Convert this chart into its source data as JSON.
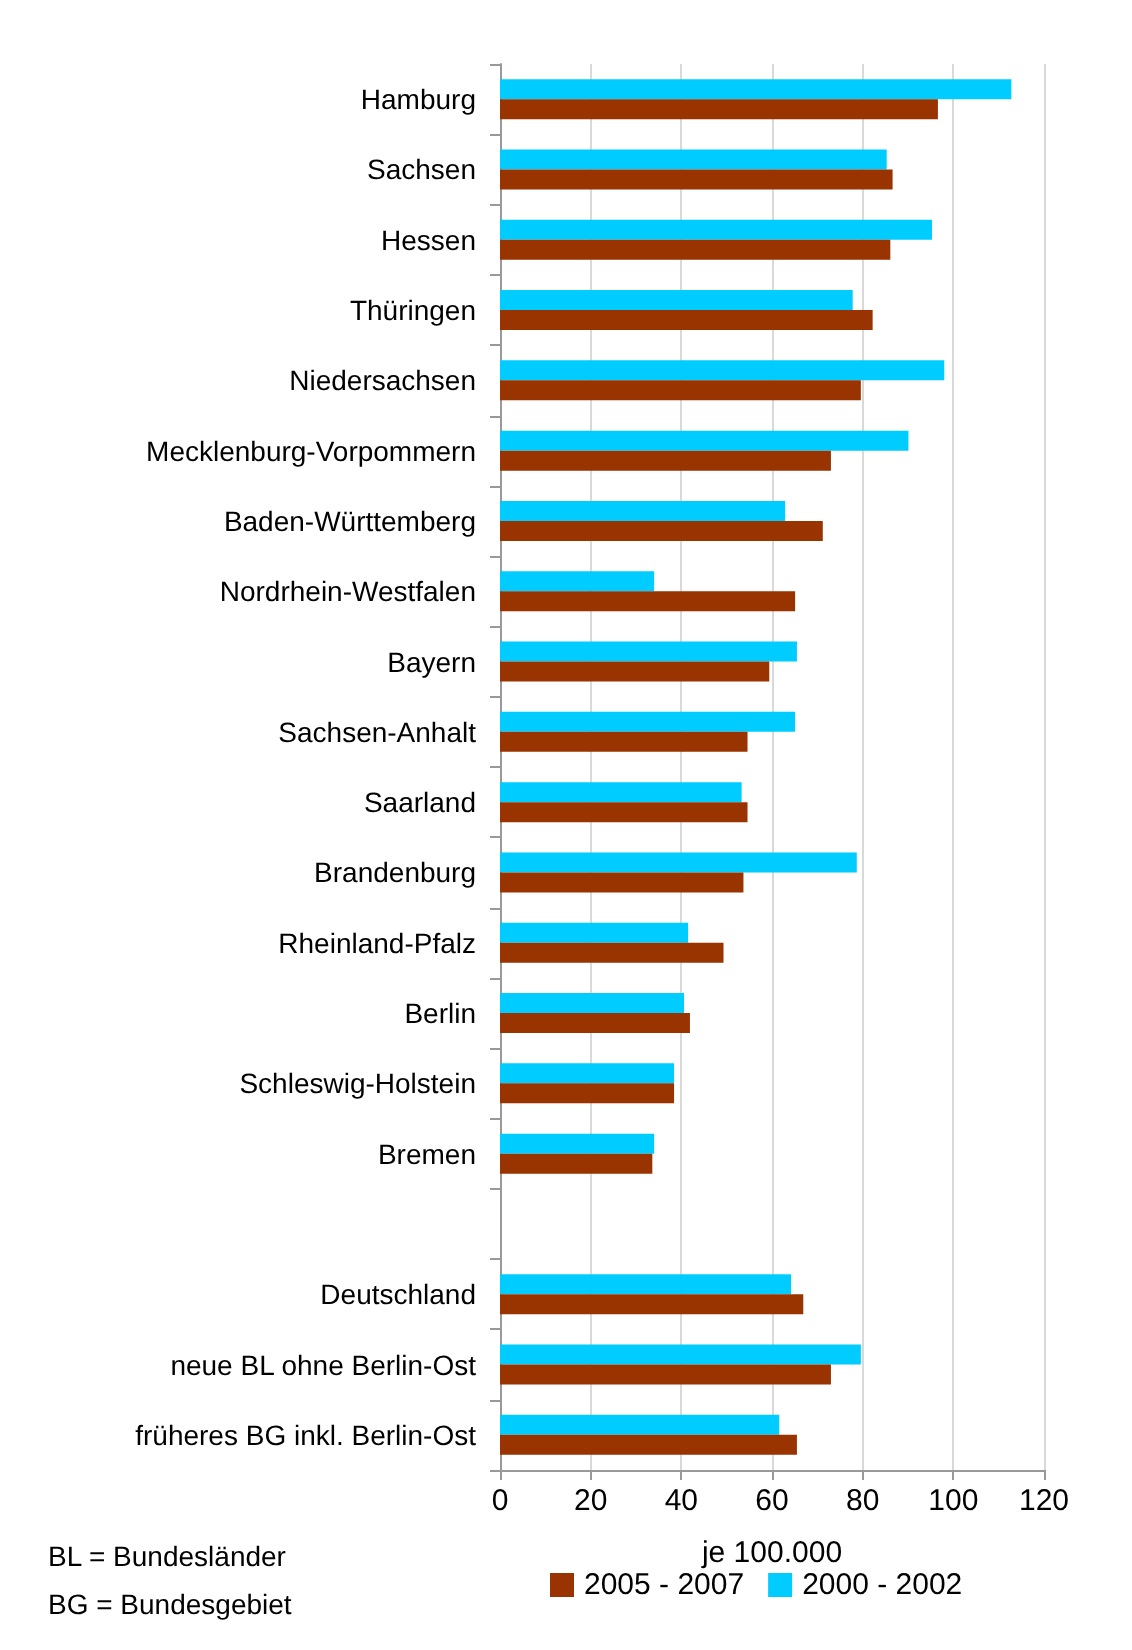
{
  "chart_data": {
    "type": "bar",
    "orientation": "horizontal",
    "xlabel": "je 100.000",
    "categories": [
      "Hamburg",
      "Sachsen",
      "Hessen",
      "Thüringen",
      "Niedersachsen",
      "Mecklenburg-Vorpommern",
      "Baden-Württemberg",
      "Nordrhein-Westfalen",
      "Bayern",
      "Sachsen-Anhalt",
      "Saarland",
      "Brandenburg",
      "Rheinland-Pfalz",
      "Berlin",
      "Schleswig-Holstein",
      "Bremen",
      null,
      "Deutschland",
      "neue BL ohne Berlin-Ost",
      "früheres BG inkl. Berlin-Ost"
    ],
    "series": [
      {
        "name": "2005 - 2007",
        "color": "#993300",
        "values": [
          96.6,
          86.6,
          86.1,
          82.2,
          79.6,
          73,
          71.2,
          65.1,
          59.4,
          54.6,
          54.6,
          53.7,
          49.3,
          41.9,
          38.4,
          33.6,
          null,
          66.9,
          73,
          65.5
        ]
      },
      {
        "name": "2000 - 2002",
        "color": "#00ccff",
        "values": [
          112.8,
          85.3,
          95.3,
          77.8,
          98,
          90.1,
          62.9,
          34,
          65.5,
          65.1,
          53.3,
          78.7,
          41.5,
          40.6,
          38.4,
          34,
          null,
          64.2,
          79.6,
          61.6
        ]
      }
    ],
    "xlim": [
      0,
      120
    ],
    "xticks": [
      0,
      20,
      40,
      60,
      80,
      100,
      120
    ],
    "grid": "x",
    "legend": "bottom",
    "annotations": [
      "BL = Bundesländer",
      "BG = Bundesgebiet"
    ]
  }
}
